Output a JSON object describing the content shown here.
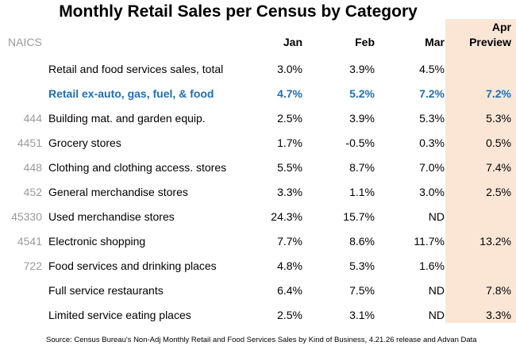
{
  "chart_data": {
    "type": "table",
    "title": "Monthly Retail Sales per Census by Category",
    "columns": {
      "naics": "NAICS",
      "jan": "Jan",
      "feb": "Feb",
      "mar": "Mar",
      "apr_line1": "Apr",
      "apr_line2": "Preview"
    },
    "rows": [
      {
        "naics": "",
        "label": "Retail and food services sales, total",
        "jan": "3.0%",
        "feb": "3.9%",
        "mar": "4.5%",
        "apr": ""
      },
      {
        "naics": "",
        "label": "Retail ex-auto, gas, fuel, & food",
        "jan": "4.7%",
        "feb": "5.2%",
        "mar": "7.2%",
        "apr": "7.2%",
        "emphasis": true
      },
      {
        "naics": "444",
        "label": "Building mat. and garden equip.",
        "jan": "2.5%",
        "feb": "3.9%",
        "mar": "5.3%",
        "apr": "5.3%"
      },
      {
        "naics": "4451",
        "label": "Grocery stores",
        "jan": "1.7%",
        "feb": "-0.5%",
        "mar": "0.3%",
        "apr": "0.5%"
      },
      {
        "naics": "448",
        "label": "Clothing and clothing access. stores",
        "jan": "5.5%",
        "feb": "8.7%",
        "mar": "7.0%",
        "apr": "7.4%"
      },
      {
        "naics": "452",
        "label": "General merchandise stores",
        "jan": "3.3%",
        "feb": "1.1%",
        "mar": "3.0%",
        "apr": "2.5%"
      },
      {
        "naics": "45330",
        "label": "Used merchandise stores",
        "jan": "24.3%",
        "feb": "15.7%",
        "mar": "ND",
        "apr": ""
      },
      {
        "naics": "4541",
        "label": "Electronic shopping",
        "jan": "7.7%",
        "feb": "8.6%",
        "mar": "11.7%",
        "apr": "13.2%"
      },
      {
        "naics": "722",
        "label": "Food services and drinking places",
        "jan": "4.8%",
        "feb": "5.3%",
        "mar": "1.6%",
        "apr": ""
      },
      {
        "naics": "",
        "label": "Full service restaurants",
        "jan": "6.4%",
        "feb": "7.5%",
        "mar": "ND",
        "apr": "7.8%"
      },
      {
        "naics": "",
        "label": "Limited service eating places",
        "jan": "2.5%",
        "feb": "3.1%",
        "mar": "ND",
        "apr": "3.3%"
      }
    ],
    "source": "Source: Census Bureau's Non-Adj Monthly Retail and Food Services Sales by Kind of Business, 4.21.26 release and Advan Data",
    "colors": {
      "emphasis": "#1f6fb5",
      "highlight": "#fbe6d6",
      "naics": "#9a9a9a"
    }
  }
}
